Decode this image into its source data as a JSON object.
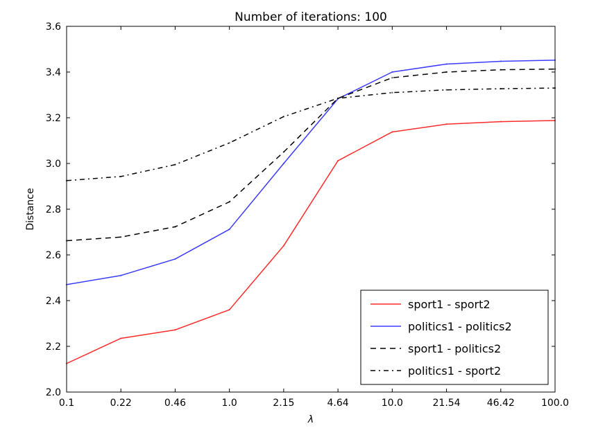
{
  "chart_data": {
    "type": "line",
    "title": "Number of iterations: 100",
    "xlabel": "λ",
    "ylabel": "Distance",
    "categories": [
      "0.1",
      "0.22",
      "0.46",
      "1.0",
      "2.15",
      "4.64",
      "10.0",
      "21.54",
      "46.42",
      "100.0"
    ],
    "ylim": [
      2.0,
      3.6
    ],
    "yticks": [
      "2.0",
      "2.2",
      "2.4",
      "2.6",
      "2.8",
      "3.0",
      "3.2",
      "3.4",
      "3.6"
    ],
    "grid": false,
    "legend_position": "lower-right",
    "series": [
      {
        "name": "sport1 - sport2",
        "color": "#ff2a2a",
        "style": "solid",
        "values": [
          2.125,
          2.235,
          2.272,
          2.36,
          2.64,
          3.012,
          3.138,
          3.172,
          3.183,
          3.188
        ]
      },
      {
        "name": "politics1 - politics2",
        "color": "#3b3bff",
        "style": "solid",
        "values": [
          2.47,
          2.51,
          2.582,
          2.712,
          3.0,
          3.283,
          3.4,
          3.435,
          3.447,
          3.452
        ]
      },
      {
        "name": "sport1 - politics2",
        "color": "#000000",
        "style": "dashed",
        "values": [
          2.662,
          2.678,
          2.723,
          2.832,
          3.05,
          3.285,
          3.375,
          3.4,
          3.41,
          3.413
        ]
      },
      {
        "name": "politics1 - sport2",
        "color": "#000000",
        "style": "dashdot",
        "values": [
          2.925,
          2.943,
          2.995,
          3.09,
          3.205,
          3.285,
          3.31,
          3.322,
          3.327,
          3.33
        ]
      }
    ]
  }
}
